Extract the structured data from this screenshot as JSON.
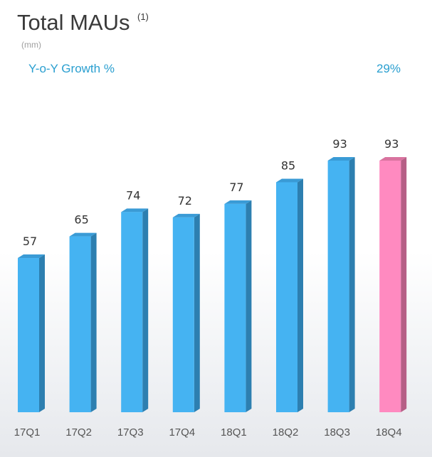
{
  "header": {
    "title": "Total MAUs",
    "title_note": "(1)",
    "units": "(mm)"
  },
  "growth": {
    "label": "Y-o-Y Growth %",
    "value": "29%"
  },
  "colors": {
    "bar_front": "#45b3f2",
    "bar_side": "#2d7fb0",
    "bar_top": "#3a9bd6",
    "highlight_front": "#ff8ac0",
    "highlight_side": "#b65f86",
    "highlight_top": "#d9739f"
  },
  "chart_data": {
    "type": "bar",
    "categories": [
      "17Q1",
      "17Q2",
      "17Q3",
      "17Q4",
      "18Q1",
      "18Q2",
      "18Q3",
      "18Q4"
    ],
    "values": [
      57,
      65,
      74,
      72,
      77,
      85,
      93,
      93
    ],
    "data_labels": [
      "57",
      "65",
      "74",
      "72",
      "77",
      "85",
      "93",
      "93"
    ],
    "highlight": "18Q4",
    "title": "Total MAUs",
    "xlabel": "",
    "ylabel": "",
    "ylim": [
      0,
      93
    ],
    "grid": false,
    "legend": "none"
  }
}
